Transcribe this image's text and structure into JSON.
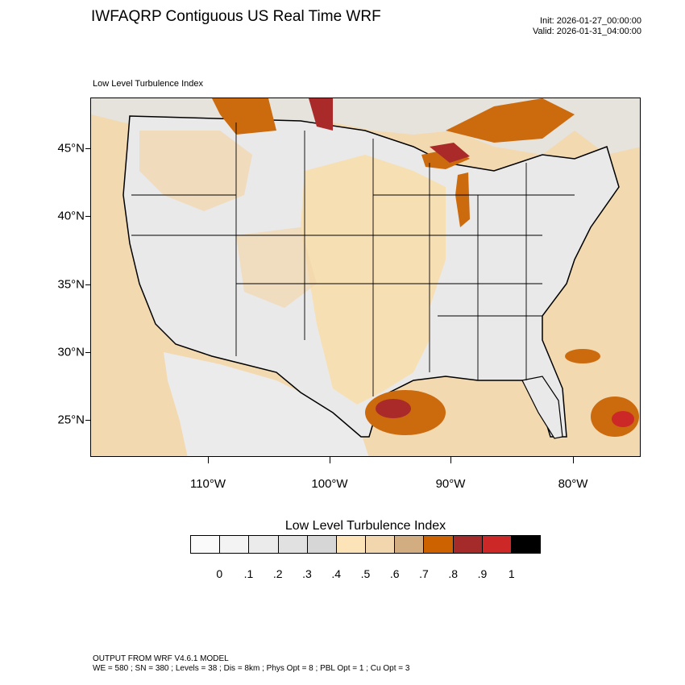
{
  "header": {
    "title": "IWFAQRP Contiguous US Real Time WRF",
    "init": "Init: 2026-01-27_00:00:00",
    "valid": "Valid: 2026-01-31_04:00:00"
  },
  "map": {
    "subtitle": "Low Level Turbulence Index",
    "lat_labels": [
      "45°N",
      "40°N",
      "35°N",
      "30°N",
      "25°N"
    ],
    "lon_labels": [
      "110°W",
      "100°W",
      "90°W",
      "80°W"
    ],
    "colors": {
      "ocean": "#f3d9b0",
      "land_light": "#e9e9e9",
      "land_tan": "#f7dfb4",
      "hot_orange": "#cc6a0e",
      "hot_red": "#aa2a2a"
    }
  },
  "legend": {
    "title": "Low Level Turbulence Index",
    "colors": [
      "#fafafa",
      "#f3f3f3",
      "#ebebeb",
      "#e1e1e1",
      "#d6d6d6",
      "#fde4b8",
      "#f2d6ad",
      "#d2ad82",
      "#cc6300",
      "#a52a2a",
      "#cc2828",
      "#000000"
    ],
    "ticks": [
      "0",
      ".1",
      ".2",
      ".3",
      ".4",
      ".5",
      ".6",
      ".7",
      ".8",
      ".9",
      "1"
    ]
  },
  "footer": {
    "line1": "OUTPUT FROM WRF V4.6.1 MODEL",
    "line2": "WE = 580 ; SN = 380 ; Levels = 38 ; Dis = 8km ; Phys Opt = 8 ; PBL Opt = 1 ; Cu Opt = 3"
  }
}
